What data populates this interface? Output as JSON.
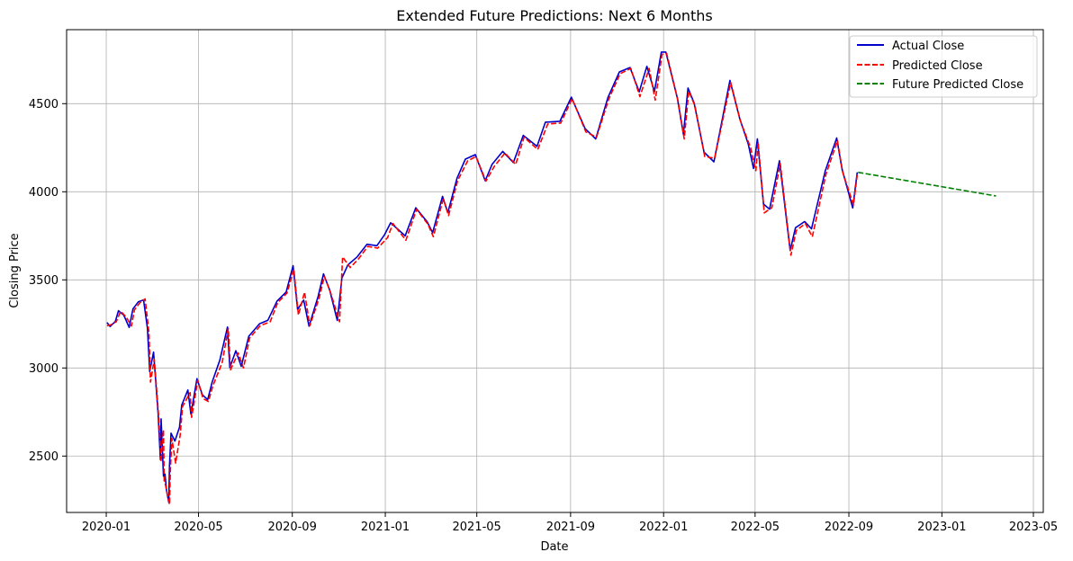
{
  "chart_data": {
    "type": "line",
    "title": "Extended Future Predictions: Next 6 Months",
    "xlabel": "Date",
    "ylabel": "Closing Price",
    "x_scale": "time",
    "xlim": [
      "2019-11-10",
      "2023-05-14"
    ],
    "ylim": [
      2180,
      4920
    ],
    "grid": true,
    "legend_position": "top-right",
    "x_ticks": [
      "2020-01",
      "2020-05",
      "2020-09",
      "2021-01",
      "2021-05",
      "2021-09",
      "2022-01",
      "2022-05",
      "2022-09",
      "2023-01",
      "2023-05"
    ],
    "y_ticks": [
      2500,
      3000,
      3500,
      4000,
      4500
    ],
    "series": [
      {
        "name": "Actual Close",
        "color": "#0000cc",
        "dash": "solid",
        "points": [
          [
            "2020-01-02",
            3258
          ],
          [
            "2020-01-06",
            3235
          ],
          [
            "2020-01-13",
            3265
          ],
          [
            "2020-01-17",
            3325
          ],
          [
            "2020-01-24",
            3300
          ],
          [
            "2020-01-31",
            3230
          ],
          [
            "2020-02-05",
            3335
          ],
          [
            "2020-02-12",
            3375
          ],
          [
            "2020-02-19",
            3386
          ],
          [
            "2020-02-24",
            3225
          ],
          [
            "2020-02-27",
            2980
          ],
          [
            "2020-03-03",
            3090
          ],
          [
            "2020-03-09",
            2745
          ],
          [
            "2020-03-12",
            2480
          ],
          [
            "2020-03-13",
            2711
          ],
          [
            "2020-03-16",
            2386
          ],
          [
            "2020-03-18",
            2398
          ],
          [
            "2020-03-20",
            2305
          ],
          [
            "2020-03-23",
            2237
          ],
          [
            "2020-03-24",
            2447
          ],
          [
            "2020-03-26",
            2630
          ],
          [
            "2020-03-31",
            2585
          ],
          [
            "2020-04-06",
            2663
          ],
          [
            "2020-04-09",
            2789
          ],
          [
            "2020-04-17",
            2875
          ],
          [
            "2020-04-21",
            2737
          ],
          [
            "2020-04-29",
            2939
          ],
          [
            "2020-05-06",
            2848
          ],
          [
            "2020-05-13",
            2820
          ],
          [
            "2020-05-19",
            2922
          ],
          [
            "2020-05-29",
            3044
          ],
          [
            "2020-06-08",
            3232
          ],
          [
            "2020-06-11",
            3002
          ],
          [
            "2020-06-19",
            3098
          ],
          [
            "2020-06-26",
            3009
          ],
          [
            "2020-07-06",
            3180
          ],
          [
            "2020-07-20",
            3251
          ],
          [
            "2020-07-31",
            3271
          ],
          [
            "2020-08-12",
            3380
          ],
          [
            "2020-08-24",
            3431
          ],
          [
            "2020-09-02",
            3580
          ],
          [
            "2020-09-08",
            3332
          ],
          [
            "2020-09-16",
            3385
          ],
          [
            "2020-09-23",
            3237
          ],
          [
            "2020-10-05",
            3408
          ],
          [
            "2020-10-12",
            3534
          ],
          [
            "2020-10-20",
            3443
          ],
          [
            "2020-10-30",
            3270
          ],
          [
            "2020-11-05",
            3510
          ],
          [
            "2020-11-13",
            3585
          ],
          [
            "2020-11-25",
            3630
          ],
          [
            "2020-12-08",
            3702
          ],
          [
            "2020-12-21",
            3694
          ],
          [
            "2020-12-31",
            3756
          ],
          [
            "2021-01-08",
            3824
          ],
          [
            "2021-01-27",
            3750
          ],
          [
            "2021-02-10",
            3909
          ],
          [
            "2021-02-25",
            3829
          ],
          [
            "2021-03-04",
            3768
          ],
          [
            "2021-03-17",
            3974
          ],
          [
            "2021-03-24",
            3881
          ],
          [
            "2021-04-05",
            4077
          ],
          [
            "2021-04-16",
            4185
          ],
          [
            "2021-04-29",
            4211
          ],
          [
            "2021-05-12",
            4063
          ],
          [
            "2021-05-21",
            4155
          ],
          [
            "2021-06-04",
            4229
          ],
          [
            "2021-06-18",
            4166
          ],
          [
            "2021-07-01",
            4320
          ],
          [
            "2021-07-19",
            4258
          ],
          [
            "2021-07-30",
            4395
          ],
          [
            "2021-08-18",
            4400
          ],
          [
            "2021-09-02",
            4537
          ],
          [
            "2021-09-20",
            4358
          ],
          [
            "2021-10-04",
            4300
          ],
          [
            "2021-10-20",
            4536
          ],
          [
            "2021-11-04",
            4680
          ],
          [
            "2021-11-18",
            4705
          ],
          [
            "2021-11-30",
            4567
          ],
          [
            "2021-12-10",
            4712
          ],
          [
            "2021-12-20",
            4568
          ],
          [
            "2021-12-29",
            4793
          ],
          [
            "2022-01-04",
            4793
          ],
          [
            "2022-01-19",
            4533
          ],
          [
            "2022-01-27",
            4327
          ],
          [
            "2022-02-02",
            4589
          ],
          [
            "2022-02-10",
            4504
          ],
          [
            "2022-02-23",
            4225
          ],
          [
            "2022-03-08",
            4170
          ],
          [
            "2022-03-29",
            4632
          ],
          [
            "2022-04-11",
            4413
          ],
          [
            "2022-04-22",
            4272
          ],
          [
            "2022-04-29",
            4132
          ],
          [
            "2022-05-04",
            4300
          ],
          [
            "2022-05-12",
            3930
          ],
          [
            "2022-05-20",
            3901
          ],
          [
            "2022-06-02",
            4176
          ],
          [
            "2022-06-16",
            3667
          ],
          [
            "2022-06-23",
            3796
          ],
          [
            "2022-07-05",
            3831
          ],
          [
            "2022-07-14",
            3790
          ],
          [
            "2022-08-01",
            4119
          ],
          [
            "2022-08-16",
            4305
          ],
          [
            "2022-08-23",
            4129
          ],
          [
            "2022-09-06",
            3908
          ],
          [
            "2022-09-12",
            4110
          ]
        ]
      },
      {
        "name": "Predicted Close",
        "color": "#ff0000",
        "dash": "dashed",
        "points": [
          [
            "2020-01-02",
            3240
          ],
          [
            "2020-01-07",
            3245
          ],
          [
            "2020-01-14",
            3262
          ],
          [
            "2020-01-20",
            3322
          ],
          [
            "2020-01-27",
            3290
          ],
          [
            "2020-02-03",
            3238
          ],
          [
            "2020-02-07",
            3330
          ],
          [
            "2020-02-14",
            3370
          ],
          [
            "2020-02-21",
            3392
          ],
          [
            "2020-02-26",
            3200
          ],
          [
            "2020-02-28",
            2920
          ],
          [
            "2020-03-04",
            3050
          ],
          [
            "2020-03-10",
            2710
          ],
          [
            "2020-03-13",
            2470
          ],
          [
            "2020-03-16",
            2650
          ],
          [
            "2020-03-17",
            2360
          ],
          [
            "2020-03-19",
            2330
          ],
          [
            "2020-03-21",
            2282
          ],
          [
            "2020-03-24",
            2225
          ],
          [
            "2020-03-25",
            2410
          ],
          [
            "2020-03-27",
            2600
          ],
          [
            "2020-04-01",
            2460
          ],
          [
            "2020-04-07",
            2620
          ],
          [
            "2020-04-10",
            2780
          ],
          [
            "2020-04-20",
            2860
          ],
          [
            "2020-04-22",
            2720
          ],
          [
            "2020-04-30",
            2930
          ],
          [
            "2020-05-07",
            2826
          ],
          [
            "2020-05-14",
            2810
          ],
          [
            "2020-05-20",
            2900
          ],
          [
            "2020-06-01",
            3030
          ],
          [
            "2020-06-09",
            3225
          ],
          [
            "2020-06-12",
            2990
          ],
          [
            "2020-06-22",
            3085
          ],
          [
            "2020-06-29",
            3000
          ],
          [
            "2020-07-07",
            3170
          ],
          [
            "2020-07-21",
            3240
          ],
          [
            "2020-08-03",
            3262
          ],
          [
            "2020-08-13",
            3372
          ],
          [
            "2020-08-25",
            3425
          ],
          [
            "2020-09-03",
            3560
          ],
          [
            "2020-09-09",
            3300
          ],
          [
            "2020-09-17",
            3430
          ],
          [
            "2020-09-24",
            3240
          ],
          [
            "2020-10-06",
            3395
          ],
          [
            "2020-10-13",
            3520
          ],
          [
            "2020-10-21",
            3430
          ],
          [
            "2020-11-02",
            3262
          ],
          [
            "2020-11-06",
            3630
          ],
          [
            "2020-11-16",
            3570
          ],
          [
            "2020-11-27",
            3620
          ],
          [
            "2020-12-09",
            3690
          ],
          [
            "2020-12-22",
            3680
          ],
          [
            "2021-01-04",
            3740
          ],
          [
            "2021-01-11",
            3820
          ],
          [
            "2021-01-28",
            3725
          ],
          [
            "2021-02-11",
            3900
          ],
          [
            "2021-02-26",
            3815
          ],
          [
            "2021-03-05",
            3745
          ],
          [
            "2021-03-18",
            3960
          ],
          [
            "2021-03-25",
            3865
          ],
          [
            "2021-04-06",
            4065
          ],
          [
            "2021-04-19",
            4175
          ],
          [
            "2021-04-30",
            4200
          ],
          [
            "2021-05-13",
            4060
          ],
          [
            "2021-05-24",
            4145
          ],
          [
            "2021-06-07",
            4220
          ],
          [
            "2021-06-21",
            4155
          ],
          [
            "2021-07-02",
            4310
          ],
          [
            "2021-07-20",
            4240
          ],
          [
            "2021-08-02",
            4385
          ],
          [
            "2021-08-19",
            4390
          ],
          [
            "2021-09-03",
            4528
          ],
          [
            "2021-09-21",
            4340
          ],
          [
            "2021-10-05",
            4310
          ],
          [
            "2021-10-21",
            4525
          ],
          [
            "2021-11-05",
            4670
          ],
          [
            "2021-11-19",
            4700
          ],
          [
            "2021-12-01",
            4540
          ],
          [
            "2021-12-13",
            4700
          ],
          [
            "2021-12-21",
            4520
          ],
          [
            "2021-12-30",
            4780
          ],
          [
            "2022-01-05",
            4785
          ],
          [
            "2022-01-20",
            4515
          ],
          [
            "2022-01-28",
            4300
          ],
          [
            "2022-02-03",
            4570
          ],
          [
            "2022-02-11",
            4490
          ],
          [
            "2022-02-24",
            4200
          ],
          [
            "2022-03-09",
            4190
          ],
          [
            "2022-03-30",
            4620
          ],
          [
            "2022-04-12",
            4400
          ],
          [
            "2022-04-25",
            4250
          ],
          [
            "2022-05-02",
            4120
          ],
          [
            "2022-05-05",
            4280
          ],
          [
            "2022-05-13",
            3880
          ],
          [
            "2022-05-23",
            3910
          ],
          [
            "2022-06-03",
            4160
          ],
          [
            "2022-06-17",
            3640
          ],
          [
            "2022-06-24",
            3780
          ],
          [
            "2022-07-06",
            3820
          ],
          [
            "2022-07-15",
            3745
          ],
          [
            "2022-08-02",
            4100
          ],
          [
            "2022-08-17",
            4290
          ],
          [
            "2022-08-24",
            4110
          ],
          [
            "2022-09-07",
            3925
          ],
          [
            "2022-09-12",
            4095
          ]
        ]
      },
      {
        "name": "Future Predicted Close",
        "color": "#008000",
        "dash": "dashed",
        "points": [
          [
            "2022-09-13",
            4110
          ],
          [
            "2023-03-13",
            3976
          ]
        ]
      }
    ]
  }
}
